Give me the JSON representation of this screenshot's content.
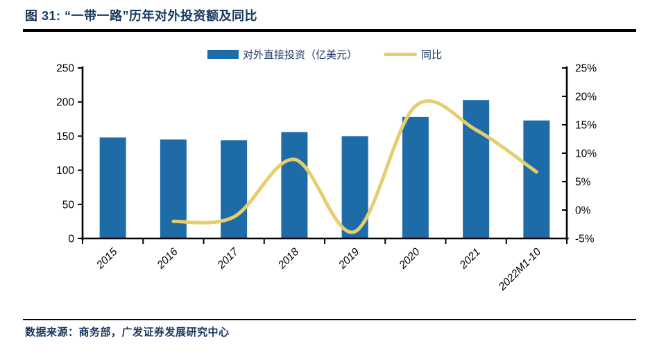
{
  "figure": {
    "title": "图 31:  “一带一路”历年对外投资额及同比",
    "source": "数据来源：商务部，广发证券发展研究中心"
  },
  "legend": {
    "bar_label": "对外直接投资（亿美元）",
    "line_label": "同比"
  },
  "colors": {
    "bar": "#1D6CA8",
    "line": "#E7CD6E",
    "heading_text": "#17375E",
    "legend_text": "#1F3864",
    "axis": "#000000"
  },
  "chart_data": {
    "type": "bar",
    "title": "“一带一路”历年对外投资额及同比",
    "categories": [
      "2015",
      "2016",
      "2017",
      "2018",
      "2019",
      "2020",
      "2021",
      "2022M1-10"
    ],
    "series": [
      {
        "name": "对外直接投资（亿美元）",
        "type": "bar",
        "axis": "left",
        "values": [
          148,
          145,
          144,
          156,
          150,
          178,
          203,
          173
        ]
      },
      {
        "name": "同比",
        "type": "line",
        "axis": "right",
        "values": [
          null,
          -2.0,
          -1.2,
          8.9,
          -3.8,
          18.3,
          14.1,
          6.7
        ]
      }
    ],
    "left_axis": {
      "min": 0,
      "max": 250,
      "tick_step": 50,
      "tick_labels": [
        "0",
        "50",
        "100",
        "150",
        "200",
        "250"
      ]
    },
    "right_axis": {
      "min": -5,
      "max": 25,
      "tick_step": 5,
      "tick_labels": [
        "-5%",
        "0%",
        "5%",
        "10%",
        "15%",
        "20%",
        "25%"
      ]
    },
    "legend_position": "top",
    "grid": false,
    "xlabel": "",
    "ylabel": ""
  }
}
